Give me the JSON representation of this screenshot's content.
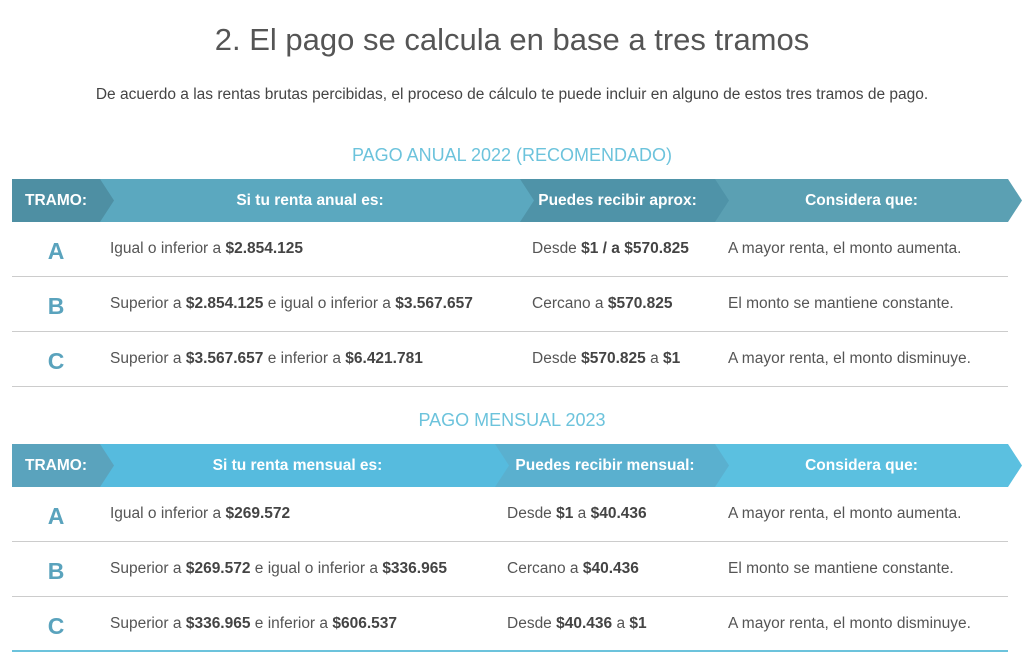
{
  "title": "2. El pago se calcula en base a tres tramos",
  "intro": "De acuerdo a las rentas brutas percibidas, el proceso de cálculo te puede incluir en alguno de estos tres tramos de pago.",
  "colors": {
    "annual_header": "#5ba8bf",
    "monthly_header": "#56bbde",
    "subtitle": "#6cc3dc",
    "letter": "#5aa3bd"
  },
  "tables": [
    {
      "subtitle": "PAGO ANUAL 2022 (RECOMENDADO)",
      "headers": [
        "TRAMO:",
        "Si tu renta anual es:",
        "Puedes recibir aprox:",
        "Considera que:"
      ],
      "rows": [
        {
          "tramo": "A",
          "renta": [
            [
              "Igual o inferior a ",
              ""
            ],
            [
              "$2.854.125",
              "b"
            ]
          ],
          "recibir": [
            [
              "Desde ",
              ""
            ],
            [
              "$1 / a $570.825",
              "b"
            ]
          ],
          "considera": "A mayor renta, el monto aumenta."
        },
        {
          "tramo": "B",
          "renta": [
            [
              "Superior a ",
              ""
            ],
            [
              "$2.854.125",
              "b"
            ],
            [
              " e igual o inferior a ",
              ""
            ],
            [
              "$3.567.657",
              "b"
            ]
          ],
          "recibir": [
            [
              "Cercano a ",
              ""
            ],
            [
              "$570.825",
              "b"
            ]
          ],
          "considera": "El monto se mantiene constante."
        },
        {
          "tramo": "C",
          "renta": [
            [
              "Superior a ",
              ""
            ],
            [
              "$3.567.657",
              "b"
            ],
            [
              " e inferior a ",
              ""
            ],
            [
              "$6.421.781",
              "b"
            ]
          ],
          "recibir": [
            [
              "Desde ",
              ""
            ],
            [
              "$570.825",
              "b"
            ],
            [
              " a ",
              ""
            ],
            [
              "$1",
              "b"
            ]
          ],
          "considera": "A mayor renta, el monto disminuye."
        }
      ]
    },
    {
      "subtitle": "PAGO MENSUAL 2023",
      "headers": [
        "TRAMO:",
        "Si tu renta mensual es:",
        "Puedes recibir mensual:",
        "Considera que:"
      ],
      "rows": [
        {
          "tramo": "A",
          "renta": [
            [
              "Igual o inferior a ",
              ""
            ],
            [
              "$269.572",
              "b"
            ]
          ],
          "recibir": [
            [
              "Desde ",
              ""
            ],
            [
              "$1",
              "b"
            ],
            [
              " a ",
              ""
            ],
            [
              "$40.436",
              "b"
            ]
          ],
          "considera": "A mayor renta, el monto aumenta."
        },
        {
          "tramo": "B",
          "renta": [
            [
              "Superior a ",
              ""
            ],
            [
              "$269.572",
              "b"
            ],
            [
              " e igual o inferior a ",
              ""
            ],
            [
              "$336.965",
              "b"
            ]
          ],
          "recibir": [
            [
              "Cercano a ",
              ""
            ],
            [
              "$40.436",
              "b"
            ]
          ],
          "considera": "El monto se mantiene constante."
        },
        {
          "tramo": "C",
          "renta": [
            [
              "Superior a ",
              ""
            ],
            [
              "$336.965",
              "b"
            ],
            [
              " e inferior a ",
              ""
            ],
            [
              "$606.537",
              "b"
            ]
          ],
          "recibir": [
            [
              "Desde ",
              ""
            ],
            [
              "$40.436",
              "b"
            ],
            [
              " a ",
              ""
            ],
            [
              "$1",
              "b"
            ]
          ],
          "considera": "A mayor renta, el monto disminuye."
        }
      ]
    }
  ]
}
